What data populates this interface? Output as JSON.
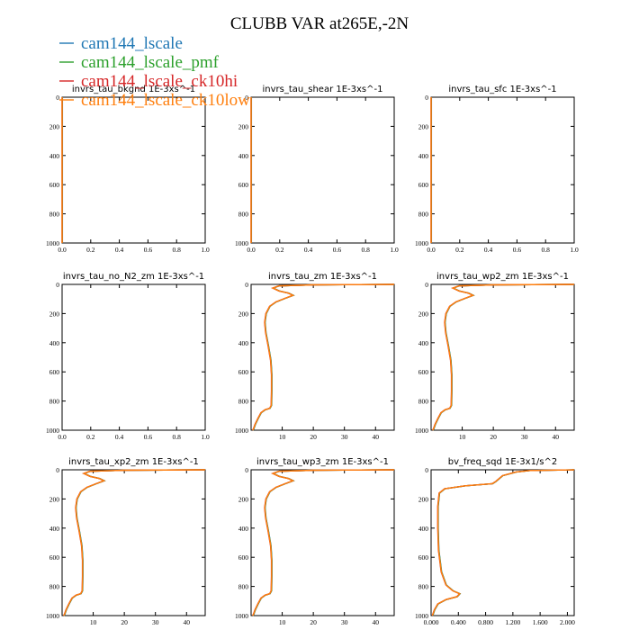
{
  "chart_data": {
    "type": "line",
    "title": "CLUBB VAR at265E,-2N",
    "legend_placement": "top-left",
    "series": [
      {
        "name": "cam144_lscale",
        "color": "#1f77b4"
      },
      {
        "name": "cam144_lscale_pmf",
        "color": "#2ca02c"
      },
      {
        "name": "cam144_lscale_ck10hi",
        "color": "#d62728"
      },
      {
        "name": "cam144_lscale_ck10low",
        "color": "#ff7f0e"
      }
    ],
    "panels": [
      {
        "title": "invrs_tau_bkgnd   1E-3xs^-1",
        "xlim": [
          0,
          1
        ],
        "ylim": [
          0,
          1000
        ],
        "inverted_y": true,
        "xticks": [
          "0.0",
          "0.2",
          "0.4",
          "0.6",
          "0.8",
          "1.0"
        ],
        "yticks": [
          "0",
          "200",
          "400",
          "600",
          "800",
          "1000"
        ],
        "profile": [
          [
            0,
            0
          ],
          [
            0,
            1000
          ]
        ]
      },
      {
        "title": "invrs_tau_shear   1E-3xs^-1",
        "xlim": [
          0,
          1
        ],
        "ylim": [
          0,
          1000
        ],
        "inverted_y": true,
        "xticks": [
          "0.0",
          "0.2",
          "0.4",
          "0.6",
          "0.8",
          "1.0"
        ],
        "yticks": [
          "0",
          "200",
          "400",
          "600",
          "800",
          "1000"
        ],
        "profile": [
          [
            0,
            0
          ],
          [
            0,
            1000
          ]
        ]
      },
      {
        "title": "invrs_tau_sfc   1E-3xs^-1",
        "xlim": [
          0,
          1
        ],
        "ylim": [
          0,
          1000
        ],
        "inverted_y": true,
        "xticks": [
          "0.0",
          "0.2",
          "0.4",
          "0.6",
          "0.8",
          "1.0"
        ],
        "yticks": [
          "0",
          "200",
          "400",
          "600",
          "800",
          "1000"
        ],
        "profile": [
          [
            0,
            0
          ],
          [
            0,
            1000
          ]
        ]
      },
      {
        "title": "invrs_tau_no_N2_zm   1E-3xs^-1",
        "xlim": [
          0,
          1
        ],
        "ylim": [
          0,
          1000
        ],
        "inverted_y": true,
        "xticks": [
          "0.0",
          "0.2",
          "0.4",
          "0.6",
          "0.8",
          "1.0"
        ],
        "yticks": [
          "0",
          "200",
          "400",
          "600",
          "800",
          "1000"
        ],
        "profile": []
      },
      {
        "title": "invrs_tau_zm   1E-3xs^-1",
        "xlim": [
          0,
          46
        ],
        "ylim": [
          0,
          1000
        ],
        "inverted_y": true,
        "xticks": [
          "10",
          "20",
          "30",
          "40"
        ],
        "xtick_values": [
          10,
          20,
          30,
          40
        ],
        "yticks": [
          "0",
          "200",
          "400",
          "600",
          "800",
          "1000"
        ],
        "profile": [
          [
            46,
            0
          ],
          [
            20,
            3
          ],
          [
            9,
            10
          ],
          [
            7,
            25
          ],
          [
            9,
            45
          ],
          [
            12,
            60
          ],
          [
            13.5,
            75
          ],
          [
            11,
            95
          ],
          [
            8,
            120
          ],
          [
            6,
            150
          ],
          [
            4.8,
            200
          ],
          [
            4.4,
            260
          ],
          [
            4.7,
            330
          ],
          [
            5.5,
            420
          ],
          [
            6.3,
            520
          ],
          [
            6.6,
            620
          ],
          [
            6.6,
            730
          ],
          [
            6.5,
            830
          ],
          [
            6,
            850
          ],
          [
            4.5,
            860
          ],
          [
            3.2,
            880
          ],
          [
            2.2,
            920
          ],
          [
            1.3,
            960
          ],
          [
            0.8,
            990
          ],
          [
            0.5,
            1000
          ]
        ]
      },
      {
        "title": "invrs_tau_wp2_zm   1E-3xs^-1",
        "xlim": [
          0,
          46
        ],
        "ylim": [
          0,
          1000
        ],
        "inverted_y": true,
        "xticks": [
          "10",
          "20",
          "30",
          "40"
        ],
        "xtick_values": [
          10,
          20,
          30,
          40
        ],
        "yticks": [
          "0",
          "200",
          "400",
          "600",
          "800",
          "1000"
        ],
        "profile": [
          [
            46,
            0
          ],
          [
            20,
            3
          ],
          [
            9,
            10
          ],
          [
            7,
            25
          ],
          [
            9,
            45
          ],
          [
            12,
            60
          ],
          [
            13.5,
            75
          ],
          [
            11,
            95
          ],
          [
            8,
            120
          ],
          [
            6,
            150
          ],
          [
            4.8,
            200
          ],
          [
            4.4,
            260
          ],
          [
            4.7,
            330
          ],
          [
            5.5,
            420
          ],
          [
            6.3,
            520
          ],
          [
            6.6,
            620
          ],
          [
            6.6,
            730
          ],
          [
            6.5,
            830
          ],
          [
            6,
            850
          ],
          [
            4.5,
            860
          ],
          [
            3.2,
            880
          ],
          [
            2.2,
            920
          ],
          [
            1.3,
            960
          ],
          [
            0.8,
            990
          ],
          [
            0.5,
            1000
          ]
        ]
      },
      {
        "title": "invrs_tau_xp2_zm   1E-3xs^-1",
        "xlim": [
          0,
          46
        ],
        "ylim": [
          0,
          1000
        ],
        "inverted_y": true,
        "xticks": [
          "10",
          "20",
          "30",
          "40"
        ],
        "xtick_values": [
          10,
          20,
          30,
          40
        ],
        "yticks": [
          "0",
          "200",
          "400",
          "600",
          "800",
          "1000"
        ],
        "profile": [
          [
            46,
            0
          ],
          [
            20,
            3
          ],
          [
            9,
            10
          ],
          [
            7,
            25
          ],
          [
            9,
            45
          ],
          [
            12,
            60
          ],
          [
            13.5,
            75
          ],
          [
            11,
            95
          ],
          [
            8,
            120
          ],
          [
            6,
            150
          ],
          [
            4.8,
            200
          ],
          [
            4.4,
            260
          ],
          [
            4.7,
            330
          ],
          [
            5.5,
            420
          ],
          [
            6.3,
            520
          ],
          [
            6.6,
            620
          ],
          [
            6.6,
            730
          ],
          [
            6.5,
            830
          ],
          [
            6,
            850
          ],
          [
            4.5,
            860
          ],
          [
            3.2,
            880
          ],
          [
            2.2,
            920
          ],
          [
            1.3,
            960
          ],
          [
            0.8,
            990
          ],
          [
            0.5,
            1000
          ]
        ]
      },
      {
        "title": "invrs_tau_wp3_zm   1E-3xs^-1",
        "xlim": [
          0,
          46
        ],
        "ylim": [
          0,
          1000
        ],
        "inverted_y": true,
        "xticks": [
          "10",
          "20",
          "30",
          "40"
        ],
        "xtick_values": [
          10,
          20,
          30,
          40
        ],
        "yticks": [
          "0",
          "200",
          "400",
          "600",
          "800",
          "1000"
        ],
        "profile": [
          [
            46,
            0
          ],
          [
            20,
            3
          ],
          [
            9,
            10
          ],
          [
            7,
            25
          ],
          [
            9,
            45
          ],
          [
            12,
            60
          ],
          [
            13.5,
            75
          ],
          [
            11,
            95
          ],
          [
            8,
            120
          ],
          [
            6,
            150
          ],
          [
            4.8,
            200
          ],
          [
            4.4,
            260
          ],
          [
            4.7,
            330
          ],
          [
            5.5,
            420
          ],
          [
            6.3,
            520
          ],
          [
            6.6,
            620
          ],
          [
            6.6,
            730
          ],
          [
            6.5,
            830
          ],
          [
            6,
            850
          ],
          [
            4.5,
            860
          ],
          [
            3.2,
            880
          ],
          [
            2.2,
            920
          ],
          [
            1.3,
            960
          ],
          [
            0.8,
            990
          ],
          [
            0.5,
            1000
          ]
        ]
      },
      {
        "title": "bv_freq_sqd   1E-3x1/s^2",
        "xlim": [
          0,
          2.1
        ],
        "ylim": [
          0,
          1000
        ],
        "inverted_y": true,
        "xticks": [
          "0.000",
          "0.400",
          "0.800",
          "1.200",
          "1.600",
          "2.000"
        ],
        "xtick_values": [
          0,
          0.4,
          0.8,
          1.2,
          1.6,
          2.0
        ],
        "yticks": [
          "0",
          "200",
          "400",
          "600",
          "800",
          "1000"
        ],
        "profile": [
          [
            2.1,
            0
          ],
          [
            1.45,
            5
          ],
          [
            1.25,
            15
          ],
          [
            1.05,
            40
          ],
          [
            0.95,
            80
          ],
          [
            0.9,
            95
          ],
          [
            0.5,
            110
          ],
          [
            0.2,
            130
          ],
          [
            0.12,
            160
          ],
          [
            0.1,
            250
          ],
          [
            0.1,
            400
          ],
          [
            0.11,
            550
          ],
          [
            0.15,
            700
          ],
          [
            0.22,
            790
          ],
          [
            0.32,
            830
          ],
          [
            0.42,
            850
          ],
          [
            0.38,
            870
          ],
          [
            0.22,
            890
          ],
          [
            0.1,
            920
          ],
          [
            0.05,
            960
          ],
          [
            0.02,
            1000
          ]
        ]
      }
    ]
  }
}
